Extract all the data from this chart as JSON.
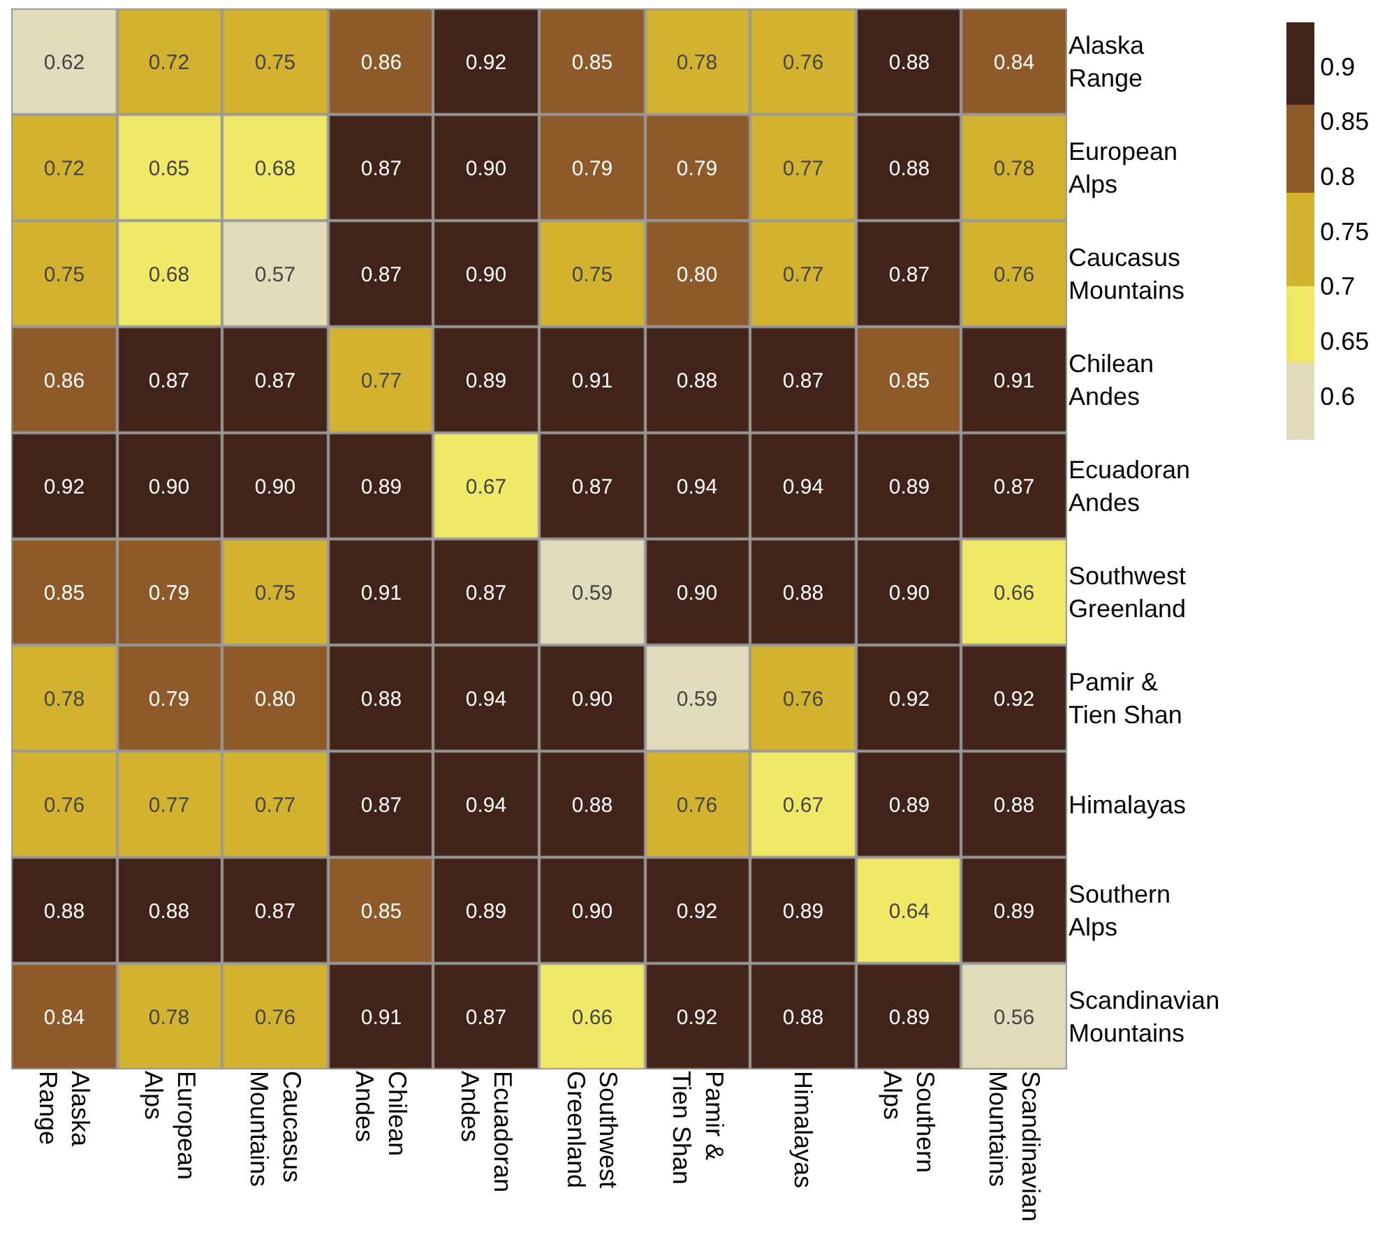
{
  "chart_data": {
    "type": "heatmap",
    "categories": [
      "Alaska Range",
      "European Alps",
      "Caucasus Mountains",
      "Chilean Andes",
      "Ecuadoran Andes",
      "Southwest Greenland",
      "Pamir & Tien Shan",
      "Himalayas",
      "Southern Alps",
      "Scandinavian Mountains"
    ],
    "y_categories": [
      "Alaska Range",
      "European Alps",
      "Caucasus Mountains",
      "Chilean Andes",
      "Ecuadoran Andes",
      "Southwest Greenland",
      "Pamir & Tien Shan",
      "Himalayas",
      "Southern Alps",
      "Scandinavian Mountains"
    ],
    "cells": [
      [
        0.62,
        0.72,
        0.75,
        0.86,
        0.92,
        0.85,
        0.78,
        0.76,
        0.88,
        0.84
      ],
      [
        0.72,
        0.65,
        0.68,
        0.87,
        0.9,
        0.79,
        0.79,
        0.77,
        0.88,
        0.78
      ],
      [
        0.75,
        0.68,
        0.57,
        0.87,
        0.9,
        0.75,
        0.8,
        0.77,
        0.87,
        0.76
      ],
      [
        0.86,
        0.87,
        0.87,
        0.77,
        0.89,
        0.91,
        0.88,
        0.87,
        0.85,
        0.91
      ],
      [
        0.92,
        0.9,
        0.9,
        0.89,
        0.67,
        0.87,
        0.94,
        0.94,
        0.89,
        0.87
      ],
      [
        0.85,
        0.79,
        0.75,
        0.91,
        0.87,
        0.59,
        0.9,
        0.88,
        0.9,
        0.66
      ],
      [
        0.78,
        0.79,
        0.8,
        0.88,
        0.94,
        0.9,
        0.59,
        0.76,
        0.92,
        0.92
      ],
      [
        0.76,
        0.77,
        0.77,
        0.87,
        0.94,
        0.88,
        0.76,
        0.67,
        0.89,
        0.88
      ],
      [
        0.88,
        0.88,
        0.87,
        0.85,
        0.89,
        0.9,
        0.92,
        0.89,
        0.64,
        0.89
      ],
      [
        0.84,
        0.78,
        0.76,
        0.91,
        0.87,
        0.66,
        0.92,
        0.88,
        0.89,
        0.56
      ]
    ],
    "cell_labels": [
      [
        "0.62",
        "0.72",
        "0.75",
        "0.86",
        "0.92",
        "0.85",
        "0.78",
        "0.76",
        "0.88",
        "0.84"
      ],
      [
        "0.72",
        "0.65",
        "0.68",
        "0.87",
        "0.90",
        "0.79",
        "0.79",
        "0.77",
        "0.88",
        "0.78"
      ],
      [
        "0.75",
        "0.68",
        "0.57",
        "0.87",
        "0.90",
        "0.75",
        "0.80",
        "0.77",
        "0.87",
        "0.76"
      ],
      [
        "0.86",
        "0.87",
        "0.87",
        "0.77",
        "0.89",
        "0.91",
        "0.88",
        "0.87",
        "0.85",
        "0.91"
      ],
      [
        "0.92",
        "0.90",
        "0.90",
        "0.89",
        "0.67",
        "0.87",
        "0.94",
        "0.94",
        "0.89",
        "0.87"
      ],
      [
        "0.85",
        "0.79",
        "0.75",
        "0.91",
        "0.87",
        "0.59",
        "0.90",
        "0.88",
        "0.90",
        "0.66"
      ],
      [
        "0.78",
        "0.79",
        "0.80",
        "0.88",
        "0.94",
        "0.90",
        "0.59",
        "0.76",
        "0.92",
        "0.92"
      ],
      [
        "0.76",
        "0.77",
        "0.77",
        "0.87",
        "0.94",
        "0.88",
        "0.76",
        "0.67",
        "0.89",
        "0.88"
      ],
      [
        "0.88",
        "0.88",
        "0.87",
        "0.85",
        "0.89",
        "0.90",
        "0.92",
        "0.89",
        "0.64",
        "0.89"
      ],
      [
        "0.84",
        "0.78",
        "0.76",
        "0.91",
        "0.87",
        "0.66",
        "0.92",
        "0.88",
        "0.89",
        "0.56"
      ]
    ],
    "clim": [
      0.56,
      0.94
    ],
    "cticks": [
      0.6,
      0.65,
      0.7,
      0.75,
      0.8,
      0.85,
      0.9
    ],
    "data_labels": true
  }
}
